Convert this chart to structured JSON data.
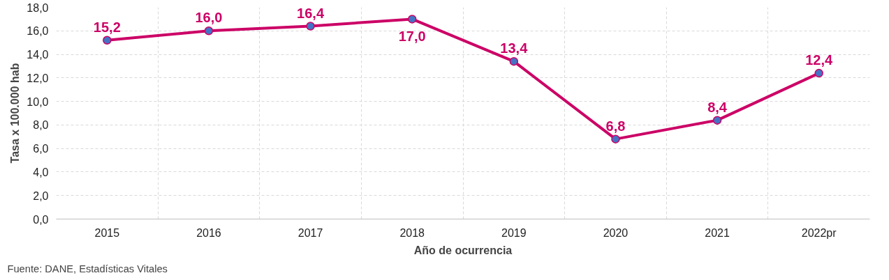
{
  "chart_data": {
    "type": "line",
    "xlabel": "Año de ocurrencia",
    "ylabel": "Tasa x 100.000 hab",
    "categories": [
      "2015",
      "2016",
      "2017",
      "2018",
      "2019",
      "2020",
      "2021",
      "2022pr"
    ],
    "series": [
      {
        "color": "#cc0066",
        "values": [
          15.2,
          16.0,
          16.4,
          17.0,
          13.4,
          6.8,
          8.4,
          12.4
        ]
      }
    ],
    "ylim": [
      0,
      18
    ],
    "yticks": [
      {
        "value": 0,
        "label": "0,0"
      },
      {
        "value": 2,
        "label": "2,0"
      },
      {
        "value": 4,
        "label": "4,0"
      },
      {
        "value": 6,
        "label": "6,0"
      },
      {
        "value": 8,
        "label": "8,0"
      },
      {
        "value": 10,
        "label": "10,0"
      },
      {
        "value": 12,
        "label": "12,0"
      },
      {
        "value": 14,
        "label": "14,0"
      },
      {
        "value": 16,
        "label": "16,0"
      },
      {
        "value": 18,
        "label": "18,0"
      }
    ],
    "value_labels": [
      "15,2",
      "16,0",
      "16,4",
      "17,0",
      "13,4",
      "6,8",
      "8,4",
      "12,4"
    ],
    "grid": true,
    "marker": "circle",
    "line_style": "solid",
    "annotations": [
      "Fuente: DANE, Estadísticas Vitales"
    ]
  }
}
